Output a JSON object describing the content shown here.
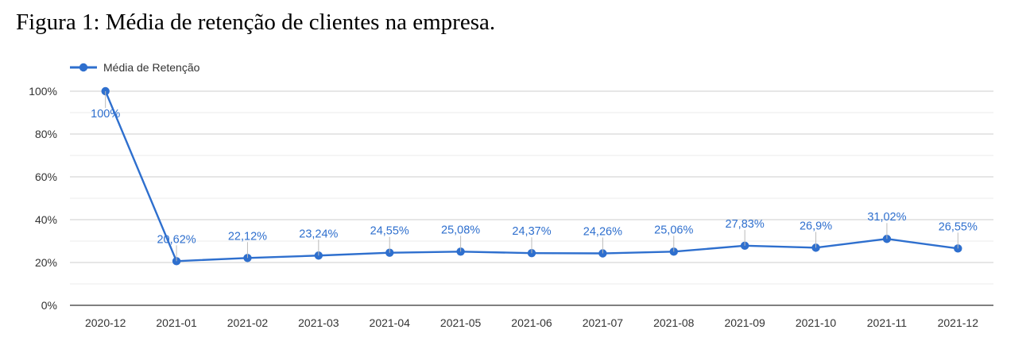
{
  "caption": "Figura 1: Média de retenção de clientes na empresa.",
  "chart_data": {
    "type": "line",
    "title": "",
    "xlabel": "",
    "ylabel": "",
    "ylim": [
      0,
      100
    ],
    "yticks": [
      "0%",
      "20%",
      "40%",
      "60%",
      "80%",
      "100%"
    ],
    "grid": true,
    "legend_position": "top-left",
    "categories": [
      "2020-12",
      "2021-01",
      "2021-02",
      "2021-03",
      "2021-04",
      "2021-05",
      "2021-06",
      "2021-07",
      "2021-08",
      "2021-09",
      "2021-10",
      "2021-11",
      "2021-12"
    ],
    "series": [
      {
        "name": "Média de Retenção",
        "color": "#2e6fce",
        "values": [
          100,
          20.62,
          22.12,
          23.24,
          24.55,
          25.08,
          24.37,
          24.26,
          25.06,
          27.83,
          26.9,
          31.02,
          26.55
        ],
        "labels": [
          "100%",
          "20,62%",
          "22,12%",
          "23,24%",
          "24,55%",
          "25,08%",
          "24,37%",
          "24,26%",
          "25,06%",
          "27,83%",
          "26,9%",
          "31,02%",
          "26,55%"
        ]
      }
    ]
  }
}
